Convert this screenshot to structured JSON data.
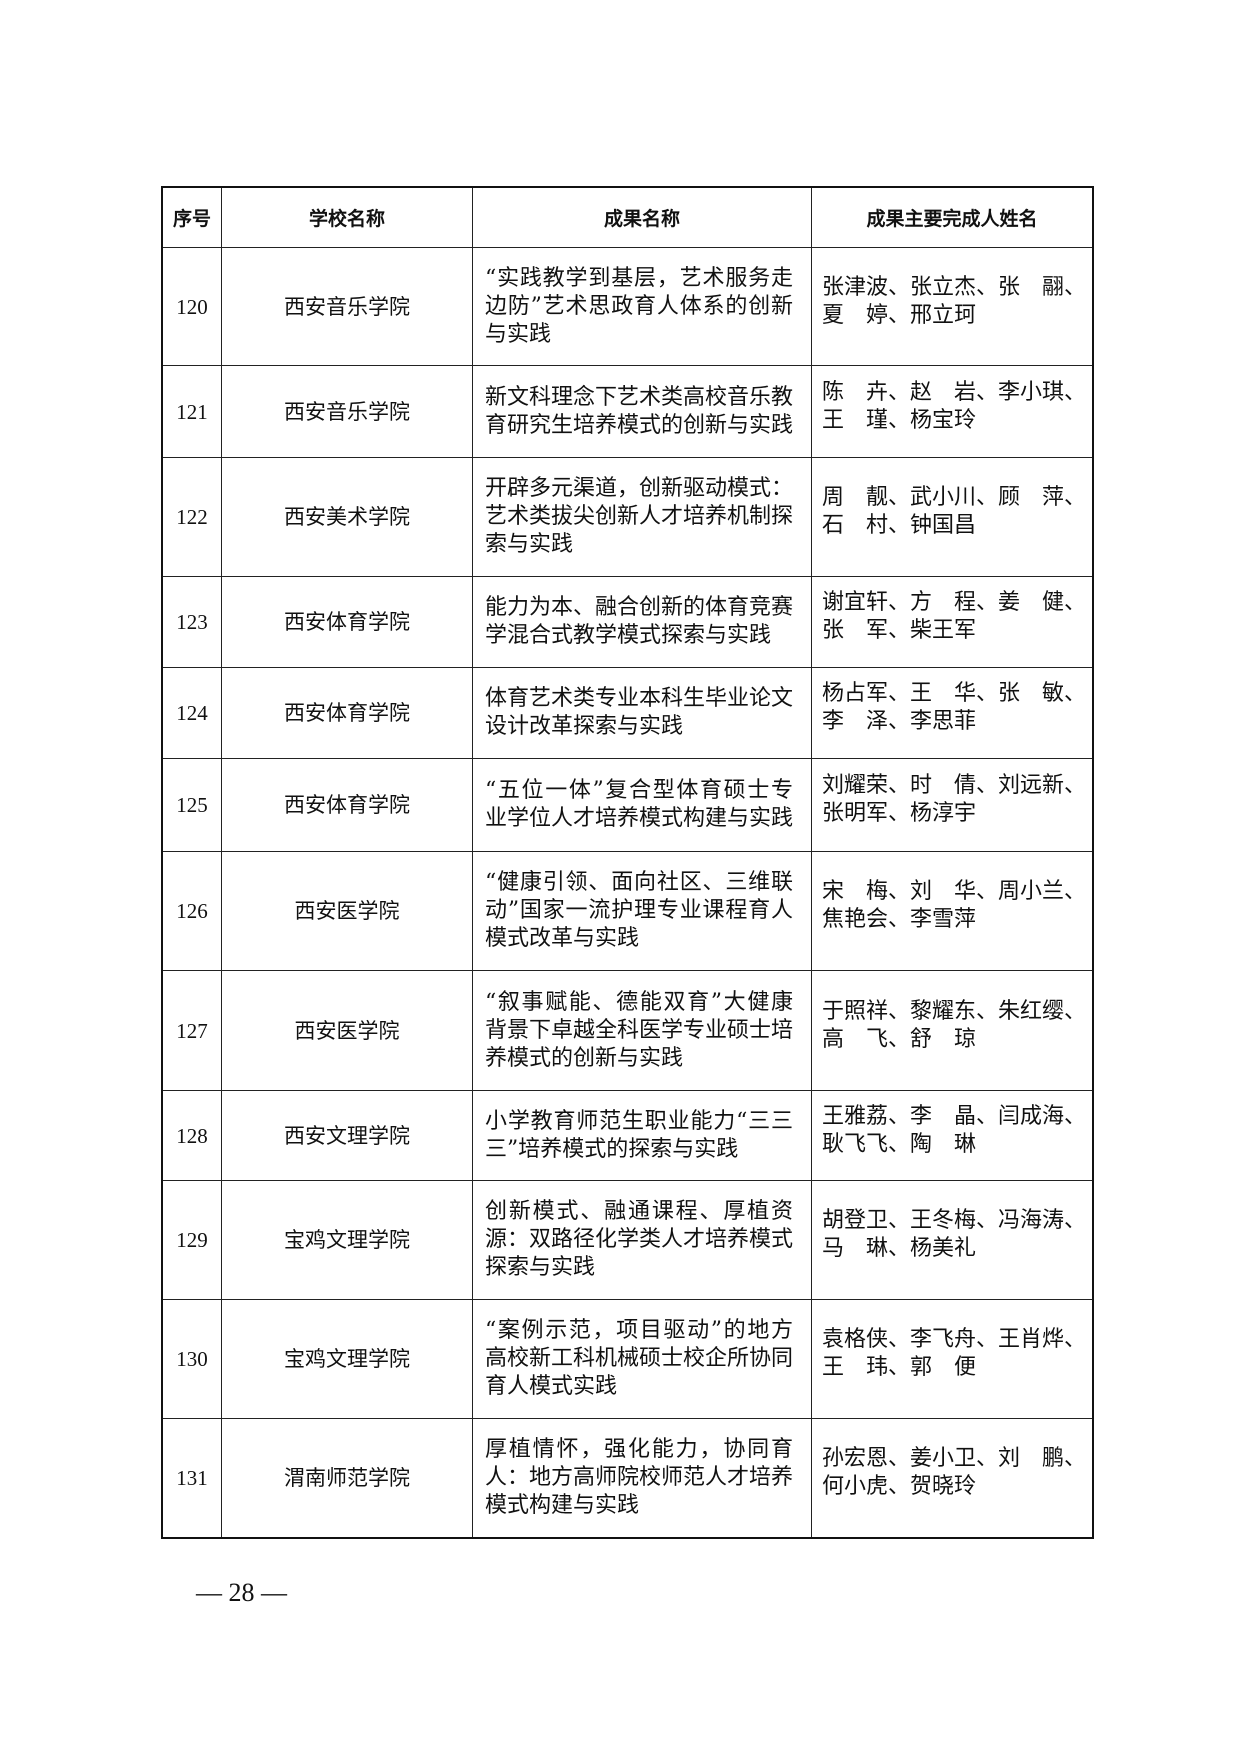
{
  "table": {
    "headers": [
      "序号",
      "学校名称",
      "成果名称",
      "成果主要完成人姓名"
    ],
    "rows": [
      {
        "no": "120",
        "school": "西安音乐学院",
        "title": "“实践教学到基层，艺术服务走边防”艺术思政育人体系的创新与实践",
        "people": "张津波、张立杰、张　翮、夏　婷、邢立珂"
      },
      {
        "no": "121",
        "school": "西安音乐学院",
        "title": "新文科理念下艺术类高校音乐教育研究生培养模式的创新与实践",
        "people": "陈　卉、赵　岩、李小琪、王　瑾、杨宝玲"
      },
      {
        "no": "122",
        "school": "西安美术学院",
        "title": "开辟多元渠道，创新驱动模式：艺术类拔尖创新人才培养机制探索与实践",
        "people": "周　靓、武小川、顾　萍、石　村、钟国昌"
      },
      {
        "no": "123",
        "school": "西安体育学院",
        "title": "能力为本、融合创新的体育竞赛学混合式教学模式探索与实践",
        "people": "谢宜轩、方　程、姜　健、张　军、柴王军"
      },
      {
        "no": "124",
        "school": "西安体育学院",
        "title": "体育艺术类专业本科生毕业论文设计改革探索与实践",
        "people": "杨占军、王　华、张　敏、李　泽、李思菲"
      },
      {
        "no": "125",
        "school": "西安体育学院",
        "title": "“五位一体”复合型体育硕士专业学位人才培养模式构建与实践",
        "people": "刘耀荣、时　倩、刘远新、张明军、杨淳宇"
      },
      {
        "no": "126",
        "school": "西安医学院",
        "title": "“健康引领、面向社区、三维联动”国家一流护理专业课程育人模式改革与实践",
        "people": "宋　梅、刘　华、周小兰、焦艳会、李雪萍"
      },
      {
        "no": "127",
        "school": "西安医学院",
        "title": "“叙事赋能、德能双育”大健康背景下卓越全科医学专业硕士培养模式的创新与实践",
        "people": "于照祥、黎耀东、朱红缨、高　飞、舒　琼"
      },
      {
        "no": "128",
        "school": "西安文理学院",
        "title": "小学教育师范生职业能力“三三三”培养模式的探索与实践",
        "people": "王雅荔、李　晶、闫成海、耿飞飞、陶　琳"
      },
      {
        "no": "129",
        "school": "宝鸡文理学院",
        "title": "创新模式、融通课程、厚植资源：双路径化学类人才培养模式探索与实践",
        "people": "胡登卫、王冬梅、冯海涛、马　琳、杨美礼"
      },
      {
        "no": "130",
        "school": "宝鸡文理学院",
        "title": "“案例示范，项目驱动”的地方高校新工科机械硕士校企所协同育人模式实践",
        "people": "袁格侠、李飞舟、王肖烨、王　玮、郭　便"
      },
      {
        "no": "131",
        "school": "渭南师范学院",
        "title": "厚植情怀，强化能力，协同育人：地方高师院校师范人才培养模式构建与实践",
        "people": "孙宏恩、姜小卫、刘　鹏、何小虎、贺晓玲"
      }
    ]
  },
  "footer": {
    "page_number": "— 28 —"
  }
}
